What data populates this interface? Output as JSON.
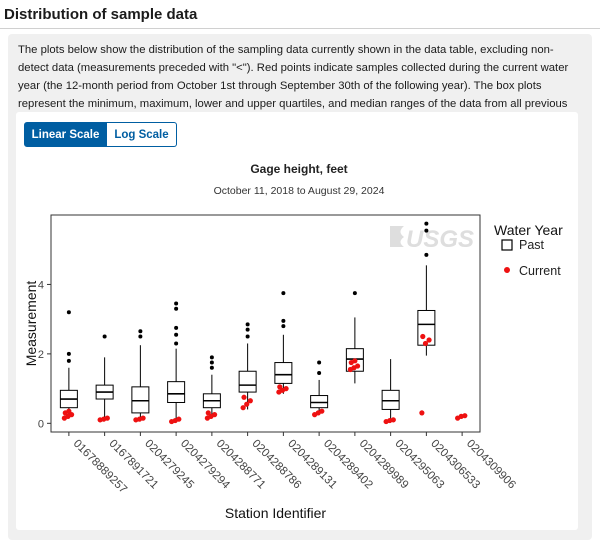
{
  "section": {
    "title": "Distribution of sample data",
    "description": "The plots below show the distribution of the sampling data currently shown in the data table, excluding non-detect data (measurements preceded with \"<\"). Red points indicate samples collected during the current water year (the 12-month period from October 1st through September 30th of the following year). The box plots represent the minimum, maximum, lower and upper quartiles, and median ranges of the data from all previous water years."
  },
  "scale_toggle": {
    "linear_label": "Linear Scale",
    "log_label": "Log Scale",
    "selected": "linear"
  },
  "watermark": "USGS",
  "colors": {
    "accent": "#005ea2",
    "current_point": "#ee1111",
    "past_box": "#000000"
  },
  "chart_data": {
    "type": "boxplot",
    "title": "Gage height, feet",
    "subtitle": "October 11, 2018 to August 29, 2024",
    "xlabel": "Station Identifier",
    "ylabel": "Measurement",
    "ylim": [
      -0.25,
      6.0
    ],
    "yticks": [
      0,
      2,
      4
    ],
    "legend": {
      "title": "Water Year",
      "past_label": "Past",
      "current_label": "Current",
      "position": "right"
    },
    "categories": [
      "01678889257",
      "0167891721",
      "0204279245",
      "0204279294",
      "0204288771",
      "0204288786",
      "0204289131",
      "0204289402",
      "0204289989",
      "0204295063",
      "0204306533",
      "0204309906"
    ],
    "boxes": [
      {
        "station": "01678889257",
        "min": 0.15,
        "q1": 0.45,
        "median": 0.7,
        "q3": 0.95,
        "max": 1.6,
        "outliers": [
          1.8,
          2.0,
          3.2
        ]
      },
      {
        "station": "0167891721",
        "min": 0.15,
        "q1": 0.7,
        "median": 0.9,
        "q3": 1.1,
        "max": 1.9,
        "outliers": [
          2.5
        ]
      },
      {
        "station": "0204279245",
        "min": 0.1,
        "q1": 0.3,
        "median": 0.65,
        "q3": 1.05,
        "max": 2.25,
        "outliers": [
          2.5,
          2.65
        ]
      },
      {
        "station": "0204279294",
        "min": 0.1,
        "q1": 0.6,
        "median": 0.85,
        "q3": 1.2,
        "max": 2.15,
        "outliers": [
          2.3,
          2.55,
          2.75,
          3.3,
          3.45
        ]
      },
      {
        "station": "0204288771",
        "min": 0.25,
        "q1": 0.45,
        "median": 0.65,
        "q3": 0.85,
        "max": 1.4,
        "outliers": [
          1.6,
          1.75,
          1.9
        ]
      },
      {
        "station": "0204288786",
        "min": 0.4,
        "q1": 0.9,
        "median": 1.1,
        "q3": 1.5,
        "max": 2.3,
        "outliers": [
          2.5,
          2.7,
          2.85
        ]
      },
      {
        "station": "0204289131",
        "min": 0.85,
        "q1": 1.15,
        "median": 1.4,
        "q3": 1.75,
        "max": 2.55,
        "outliers": [
          2.8,
          2.95,
          3.75
        ]
      },
      {
        "station": "0204289402",
        "min": 0.3,
        "q1": 0.45,
        "median": 0.6,
        "q3": 0.8,
        "max": 1.25,
        "outliers": [
          1.45,
          1.75
        ]
      },
      {
        "station": "0204289989",
        "min": 1.15,
        "q1": 1.5,
        "median": 1.85,
        "q3": 2.15,
        "max": 3.05,
        "outliers": [
          3.75
        ]
      },
      {
        "station": "0204295063",
        "min": 0.05,
        "q1": 0.4,
        "median": 0.65,
        "q3": 0.95,
        "max": 1.85,
        "outliers": []
      },
      {
        "station": "0204306533",
        "min": 1.95,
        "q1": 2.25,
        "median": 2.85,
        "q3": 3.25,
        "max": 4.55,
        "outliers": [
          4.85,
          5.55,
          5.75
        ]
      },
      {
        "station": "0204309906",
        "min": null,
        "q1": null,
        "median": null,
        "q3": null,
        "max": null,
        "outliers": []
      }
    ],
    "current_points": [
      {
        "station": "01678889257",
        "values": [
          0.15,
          0.2,
          0.25,
          0.3,
          0.35
        ]
      },
      {
        "station": "0167891721",
        "values": [
          0.1,
          0.12,
          0.15
        ]
      },
      {
        "station": "0204279245",
        "values": [
          0.1,
          0.12,
          0.15
        ]
      },
      {
        "station": "0204279294",
        "values": [
          0.05,
          0.08,
          0.12
        ]
      },
      {
        "station": "0204288771",
        "values": [
          0.15,
          0.2,
          0.25,
          0.3
        ]
      },
      {
        "station": "0204288786",
        "values": [
          0.45,
          0.55,
          0.65,
          0.75
        ]
      },
      {
        "station": "0204289131",
        "values": [
          0.9,
          0.95,
          1.0,
          1.05
        ]
      },
      {
        "station": "0204289402",
        "values": [
          0.25,
          0.3,
          0.35
        ]
      },
      {
        "station": "0204289989",
        "values": [
          1.55,
          1.6,
          1.65,
          1.75,
          1.8
        ]
      },
      {
        "station": "0204295063",
        "values": [
          0.05,
          0.08,
          0.1
        ]
      },
      {
        "station": "0204306533",
        "values": [
          0.3,
          2.3,
          2.4,
          2.5
        ]
      },
      {
        "station": "0204309906",
        "values": [
          0.15,
          0.2,
          0.22
        ]
      }
    ]
  }
}
